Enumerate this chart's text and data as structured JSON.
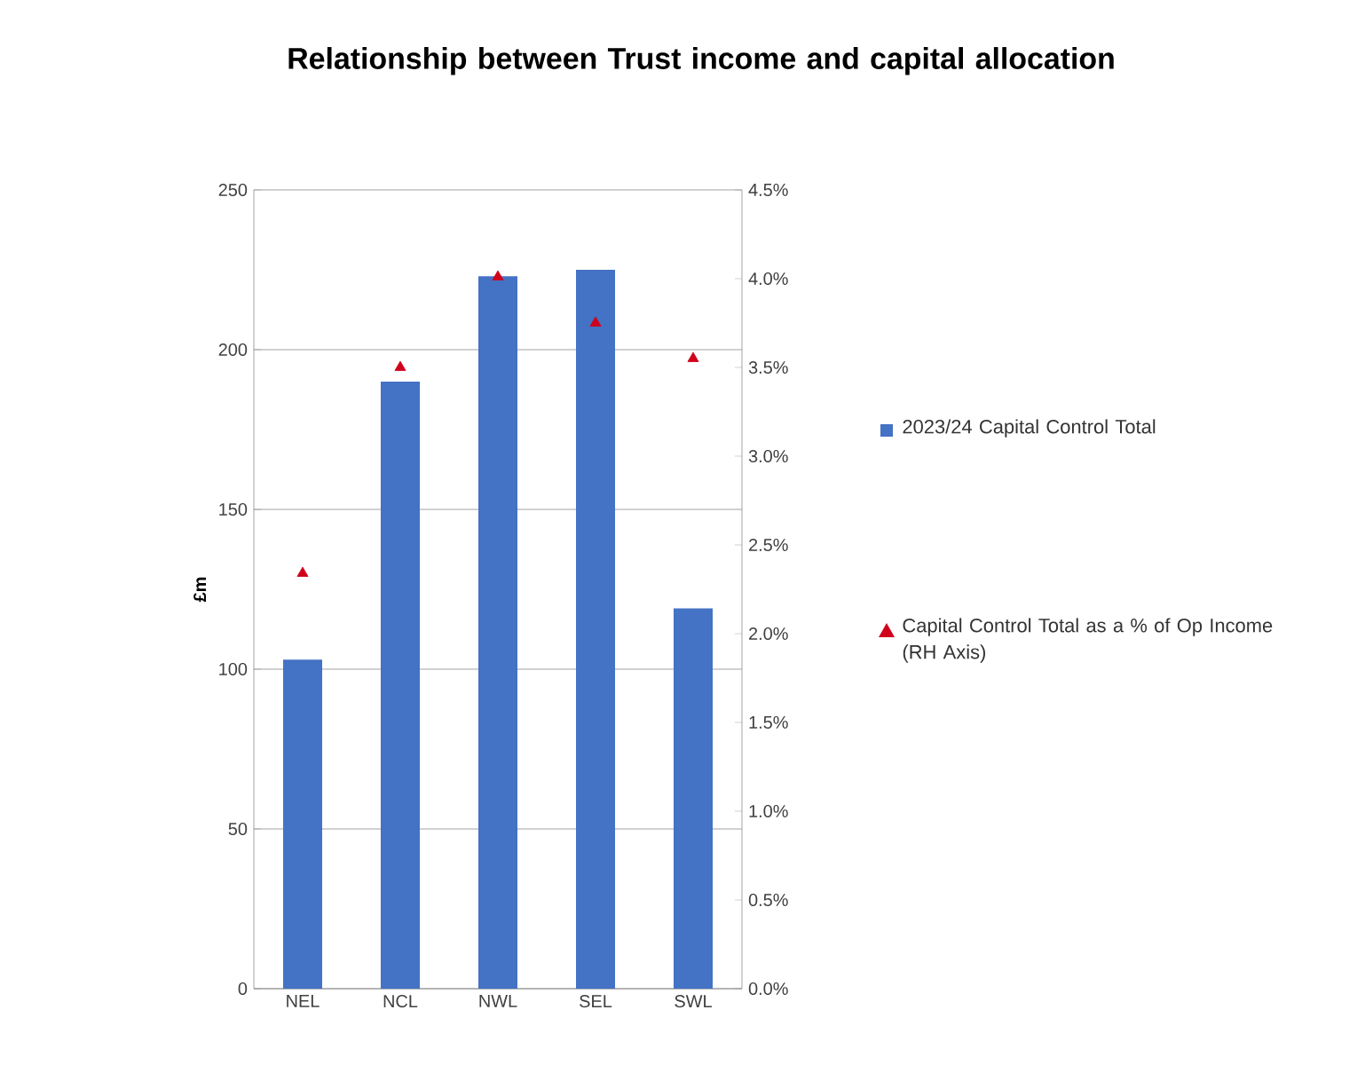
{
  "chart_data": {
    "type": "bar",
    "title": "Relationship between Trust income and capital allocation",
    "ylabel": "£m",
    "categories": [
      "NEL",
      "NCL",
      "NWL",
      "SEL",
      "SWL"
    ],
    "series": [
      {
        "name": "2023/24 Capital Control Total",
        "color": "#4472c4",
        "values": [
          103,
          190,
          223,
          225,
          119
        ]
      },
      {
        "name": "Capital Control Total as a % of Op Income (RH Axis)",
        "type": "scatter",
        "axis": "y2",
        "marker": "triangle",
        "color": "#d0021b",
        "values": [
          2.34,
          3.5,
          4.01,
          3.75,
          3.55
        ]
      }
    ],
    "ylim": [
      0,
      250
    ],
    "yticks": [
      0,
      50,
      100,
      150,
      200,
      250
    ],
    "y2lim": [
      0,
      4.5
    ],
    "y2ticks": [
      {
        "value": 0,
        "label": "0.0%"
      },
      {
        "value": 0.5,
        "label": "0.5%"
      },
      {
        "value": 1,
        "label": "1.0%"
      },
      {
        "value": 1.5,
        "label": "1.5%"
      },
      {
        "value": 2,
        "label": "2.0%"
      },
      {
        "value": 2.5,
        "label": "2.5%"
      },
      {
        "value": 3,
        "label": "3.0%"
      },
      {
        "value": 3.5,
        "label": "3.5%"
      },
      {
        "value": 4,
        "label": "4.0%"
      },
      {
        "value": 4.5,
        "label": "4.5%"
      }
    ],
    "grid": "y",
    "legend": "right"
  }
}
